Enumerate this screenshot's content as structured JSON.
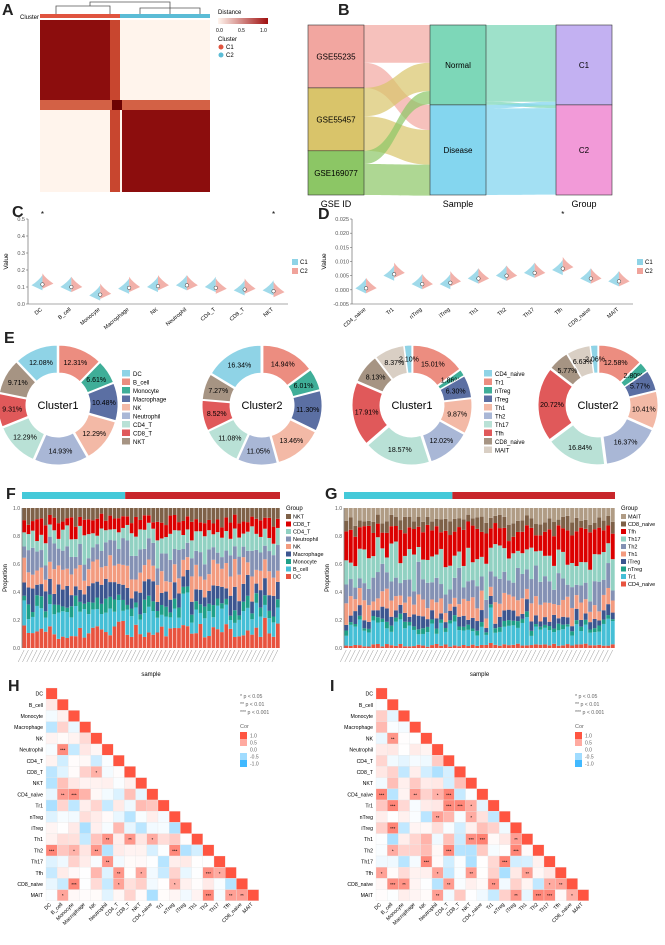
{
  "panel_labels": {
    "a": "A",
    "b": "B",
    "c": "C",
    "d": "D",
    "e": "E",
    "f": "F",
    "g": "G",
    "h": "H",
    "i": "I"
  },
  "panel_a": {
    "cluster_label": "Cluster",
    "legend_title": "Distance",
    "scale_ticks": [
      "0.0",
      "0.5",
      "1.0"
    ],
    "cluster_legend_title": "Cluster",
    "clusters": [
      {
        "name": "C1",
        "color": "#e0543f"
      },
      {
        "name": "C2",
        "color": "#5bbcd6"
      }
    ]
  },
  "chart_data": [
    {
      "id": "B",
      "type": "sankey",
      "columns": [
        {
          "label": "GSE ID",
          "nodes": [
            {
              "name": "GSE55235",
              "share": 0.37,
              "color": "#f2a6a0"
            },
            {
              "name": "GSE55457",
              "share": 0.37,
              "color": "#d9c46a"
            },
            {
              "name": "GSE169077",
              "share": 0.26,
              "color": "#8cc665"
            }
          ]
        },
        {
          "label": "Sample",
          "nodes": [
            {
              "name": "Normal",
              "share": 0.47,
              "color": "#7dd7b8"
            },
            {
              "name": "Disease",
              "share": 0.53,
              "color": "#84d6ef"
            }
          ]
        },
        {
          "label": "Group",
          "nodes": [
            {
              "name": "C1",
              "share": 0.47,
              "color": "#c3b1f2"
            },
            {
              "name": "C2",
              "share": 0.53,
              "color": "#f29ad8"
            }
          ]
        }
      ]
    },
    {
      "id": "C",
      "type": "violin",
      "ylabel": "Value",
      "ylim": [
        0,
        0.5
      ],
      "yticks": [
        "0.0",
        "0.1",
        "0.2",
        "0.3",
        "0.4",
        "0.5"
      ],
      "categories": [
        "DC",
        "B_cell",
        "Monocyte",
        "Macrophage",
        "NK",
        "Neutrophil",
        "CD4_T",
        "CD8_T",
        "NKT"
      ],
      "significance": [
        "*",
        "",
        "",
        "",
        "",
        "",
        "",
        "",
        "*"
      ],
      "median_c1": [
        0.11,
        0.1,
        0.05,
        0.09,
        0.1,
        0.11,
        0.1,
        0.08,
        0.08
      ],
      "median_c2": [
        0.12,
        0.1,
        0.06,
        0.1,
        0.11,
        0.11,
        0.09,
        0.09,
        0.07
      ],
      "legend": [
        {
          "name": "C1",
          "color": "#8fd3e6"
        },
        {
          "name": "C2",
          "color": "#f0a39b"
        }
      ]
    },
    {
      "id": "D",
      "type": "violin",
      "ylabel": "Value",
      "ylim": [
        -0.005,
        0.025
      ],
      "yticks": [
        "-0.005",
        "0.000",
        "0.005",
        "0.010",
        "0.015",
        "0.020",
        "0.025"
      ],
      "categories": [
        "CD4_naive",
        "Tr1",
        "nTreg",
        "iTreg",
        "Th1",
        "Th2",
        "Th17",
        "Tfh",
        "CD8_naive",
        "MAIT"
      ],
      "significance": [
        "",
        "",
        "",
        "",
        "",
        "",
        "",
        "*",
        "",
        ""
      ],
      "median_c1": [
        0.0005,
        0.005,
        0.002,
        0.002,
        0.004,
        0.005,
        0.006,
        0.007,
        0.004,
        0.003
      ],
      "median_c2": [
        0.0006,
        0.006,
        0.002,
        0.003,
        0.004,
        0.005,
        0.006,
        0.008,
        0.004,
        0.003
      ],
      "legend": [
        {
          "name": "C1",
          "color": "#8fd3e6"
        },
        {
          "name": "C2",
          "color": "#f0a39b"
        }
      ]
    },
    {
      "id": "E",
      "type": "pie",
      "donuts": [
        {
          "center": "Cluster1",
          "labels": [
            "B_cell",
            "Monocyte",
            "Macrophage",
            "NK",
            "Neutrophil",
            "CD4_T",
            "CD8_T",
            "NKT",
            "DC"
          ],
          "values": [
            12.31,
            6.61,
            10.48,
            12.29,
            14.93,
            12.29,
            9.31,
            9.71,
            12.08
          ],
          "value_labels": [
            "12.31%",
            "6.61%",
            "10.48%",
            "12.29%",
            "14.93%",
            "12.29%",
            "9.31%",
            "9.71%",
            "12.08%"
          ]
        },
        {
          "center": "Cluster2",
          "labels": [
            "B_cell",
            "Monocyte",
            "Macrophage",
            "NK",
            "Neutrophil",
            "CD4_T",
            "CD8_T",
            "NKT",
            "DC"
          ],
          "values": [
            14.94,
            6.01,
            11.3,
            13.46,
            11.05,
            11.08,
            8.52,
            7.27,
            16.34
          ],
          "value_labels": [
            "14.94%",
            "6.01%",
            "11.30%",
            "13.46%",
            "11.05%",
            "11.08%",
            "8.52%",
            "7.27%",
            "16.34%"
          ]
        },
        {
          "center": "Cluster1",
          "labels": [
            "Tr1",
            "nTreg",
            "iTreg",
            "Th1",
            "Th2",
            "Th17",
            "Tfh",
            "CD8_naive",
            "MAIT",
            "CD4_naive"
          ],
          "values": [
            15.01,
            1.86,
            6.3,
            9.87,
            12.02,
            18.57,
            17.91,
            8.13,
            8.37,
            2.1
          ],
          "value_labels": [
            "15.01%",
            "1.86%",
            "6.30%",
            "9.87%",
            "12.02%",
            "18.57%",
            "17.91%",
            "8.13%",
            "8.37%",
            "2.10%"
          ]
        },
        {
          "center": "Cluster2",
          "labels": [
            "Tr1",
            "nTreg",
            "iTreg",
            "Th1",
            "Th2",
            "Th17",
            "Tfh",
            "CD8_naive",
            "MAIT",
            "CD4_naive"
          ],
          "values": [
            12.58,
            2.8,
            5.77,
            10.41,
            16.37,
            16.84,
            20.72,
            5.77,
            6.63,
            2.06
          ],
          "value_labels": [
            "12.58%",
            "2.80%",
            "5.77%",
            "10.41%",
            "16.37%",
            "16.84%",
            "20.72%",
            "5.77%",
            "6.63%",
            "2.06%"
          ]
        }
      ],
      "legend1": [
        {
          "name": "DC",
          "color": "#8fd3e6"
        },
        {
          "name": "B_cell",
          "color": "#ec8d80"
        },
        {
          "name": "Monocyte",
          "color": "#3fae98"
        },
        {
          "name": "Macrophage",
          "color": "#5b6fa3"
        },
        {
          "name": "NK",
          "color": "#f3b9a6"
        },
        {
          "name": "Neutrophil",
          "color": "#a9b7d6"
        },
        {
          "name": "CD4_T",
          "color": "#b9e1d6"
        },
        {
          "name": "CD8_T",
          "color": "#e0595a"
        },
        {
          "name": "NKT",
          "color": "#a69483"
        }
      ],
      "legend2": [
        {
          "name": "CD4_naive",
          "color": "#8fd3e6"
        },
        {
          "name": "Tr1",
          "color": "#ec8d80"
        },
        {
          "name": "nTreg",
          "color": "#3fae98"
        },
        {
          "name": "iTreg",
          "color": "#5b6fa3"
        },
        {
          "name": "Th1",
          "color": "#f3b9a6"
        },
        {
          "name": "Th2",
          "color": "#a9b7d6"
        },
        {
          "name": "Th17",
          "color": "#b9e1d6"
        },
        {
          "name": "Tfh",
          "color": "#e0595a"
        },
        {
          "name": "CD8_naive",
          "color": "#a69483"
        },
        {
          "name": "MAIT",
          "color": "#d9cfc4"
        }
      ]
    },
    {
      "id": "F",
      "type": "bar",
      "stacked": true,
      "ylabel": "Proportion",
      "xlabel": "sample",
      "yticks": [
        "0.0",
        "0.2",
        "0.4",
        "0.6",
        "0.8",
        "1.0"
      ],
      "n_samples": 60,
      "groups": [
        {
          "name": "C1",
          "count": 24,
          "color": "#44c9d9"
        },
        {
          "name": "C2",
          "count": 36,
          "color": "#c8262b"
        }
      ],
      "legend_title": "Group",
      "series": [
        {
          "name": "DC",
          "color": "#e8533f",
          "mean": 0.12
        },
        {
          "name": "B_cell",
          "color": "#45bfd6",
          "mean": 0.13
        },
        {
          "name": "Monocyte",
          "color": "#1fa088",
          "mean": 0.06
        },
        {
          "name": "Macrophage",
          "color": "#3c5690",
          "mean": 0.11
        },
        {
          "name": "NK",
          "color": "#f39b7f",
          "mean": 0.13
        },
        {
          "name": "Neutrophil",
          "color": "#8491b4",
          "mean": 0.13
        },
        {
          "name": "CD4_T",
          "color": "#91d1c2",
          "mean": 0.12
        },
        {
          "name": "CD8_T",
          "color": "#dc0000",
          "mean": 0.09
        },
        {
          "name": "NKT",
          "color": "#7e6148",
          "mean": 0.08
        }
      ]
    },
    {
      "id": "G",
      "type": "bar",
      "stacked": true,
      "ylabel": "Proportion",
      "xlabel": "sample",
      "yticks": [
        "0.0",
        "0.2",
        "0.4",
        "0.6",
        "0.8",
        "1.0"
      ],
      "n_samples": 60,
      "groups": [
        {
          "name": "C1",
          "count": 24,
          "color": "#44c9d9"
        },
        {
          "name": "C2",
          "count": 36,
          "color": "#c8262b"
        }
      ],
      "legend_title": "Group",
      "series": [
        {
          "name": "CD4_naive",
          "color": "#e8533f",
          "mean": 0.02
        },
        {
          "name": "Tr1",
          "color": "#45bfd6",
          "mean": 0.13
        },
        {
          "name": "nTreg",
          "color": "#1fa088",
          "mean": 0.03
        },
        {
          "name": "iTreg",
          "color": "#3c5690",
          "mean": 0.06
        },
        {
          "name": "Th1",
          "color": "#f39b7f",
          "mean": 0.1
        },
        {
          "name": "Th2",
          "color": "#8491b4",
          "mean": 0.14
        },
        {
          "name": "Th17",
          "color": "#91d1c2",
          "mean": 0.18
        },
        {
          "name": "Tfh",
          "color": "#dc0000",
          "mean": 0.19
        },
        {
          "name": "CD8_naive",
          "color": "#7e6148",
          "mean": 0.07
        },
        {
          "name": "MAIT",
          "color": "#b09c85",
          "mean": 0.08
        }
      ]
    },
    {
      "id": "H",
      "type": "heatmap",
      "labels": [
        "DC",
        "B_cell",
        "Monocyte",
        "Macrophage",
        "NK",
        "Neutrophil",
        "CD4_T",
        "CD8_T",
        "NKT",
        "CD4_naive",
        "Tr1",
        "nTreg",
        "iTreg",
        "Th1",
        "Th2",
        "Th17",
        "Tfh",
        "CD8_naive",
        "MAIT"
      ],
      "legend_p": [
        "* p < 0.05",
        "** p < 0.01",
        "*** p < 0.001"
      ],
      "legend_title": "Cor",
      "legend_ticks": [
        "1.0",
        "0.5",
        "0.0",
        "-0.5",
        "-1.0"
      ]
    },
    {
      "id": "I",
      "type": "heatmap",
      "labels": [
        "DC",
        "B_cell",
        "Monocyte",
        "Macrophage",
        "NK",
        "Neutrophil",
        "CD4_T",
        "CD8_T",
        "NKT",
        "CD4_naive",
        "Tr1",
        "nTreg",
        "iTreg",
        "Th1",
        "Th2",
        "Th17",
        "Tfh",
        "CD8_naive",
        "MAIT"
      ],
      "legend_p": [
        "* p < 0.05",
        "** p < 0.01",
        "*** p < 0.001"
      ],
      "legend_title": "Cor",
      "legend_ticks": [
        "1.0",
        "0.5",
        "0.0",
        "-0.5",
        "-1.0"
      ]
    }
  ]
}
